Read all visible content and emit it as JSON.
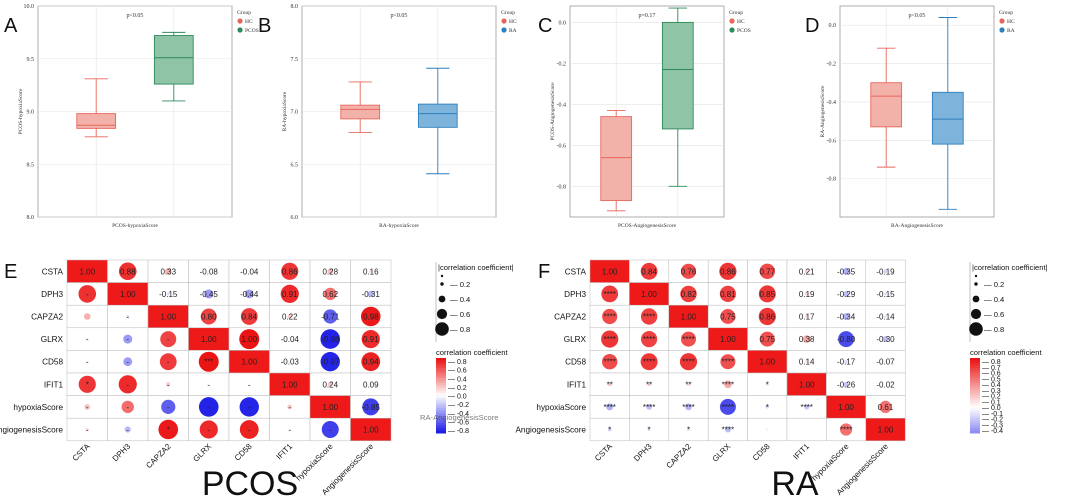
{
  "boxplots": [
    {
      "panel": "A",
      "ylabel": "PCOS-hypoxiaScore",
      "xlabel": "PCOS-hypoxiaScore",
      "pvalue": "p<0.05",
      "ylim": [
        8.0,
        10.0
      ],
      "ticks": [
        "8.0",
        "8.5",
        "9.0",
        "9.5",
        "10.0"
      ],
      "tickvals": [
        8.0,
        8.5,
        9.0,
        9.5,
        10.0
      ],
      "legend": {
        "title": "Group",
        "items": [
          {
            "label": "HC",
            "color": "#e8675c"
          },
          {
            "label": "PCOS",
            "color": "#2c8a5a"
          }
        ]
      },
      "boxes": [
        {
          "group": "HC",
          "min": 8.76,
          "q1": 8.84,
          "median": 8.87,
          "q3": 8.98,
          "max": 9.31,
          "fill": "#f2b1a9",
          "stroke": "#e8675c"
        },
        {
          "group": "PCOS",
          "min": 9.1,
          "q1": 9.26,
          "median": 9.51,
          "q3": 9.72,
          "max": 9.75,
          "fill": "#8fc4a6",
          "stroke": "#2c8a5a"
        }
      ]
    },
    {
      "panel": "B",
      "ylabel": "RA-hypoxiaScore",
      "xlabel": "RA-hypoxiaScore",
      "pvalue": "p<0.05",
      "ylim": [
        6.0,
        8.0
      ],
      "ticks": [
        "6.0",
        "6.5",
        "7.0",
        "7.5",
        "8.0"
      ],
      "tickvals": [
        6.0,
        6.5,
        7.0,
        7.5,
        8.0
      ],
      "legend": {
        "title": "Group",
        "items": [
          {
            "label": "HC",
            "color": "#e8675c"
          },
          {
            "label": "RA",
            "color": "#2d7fbd"
          }
        ]
      },
      "boxes": [
        {
          "group": "HC",
          "min": 6.8,
          "q1": 6.93,
          "median": 7.02,
          "q3": 7.06,
          "max": 7.28,
          "fill": "#f2b1a9",
          "stroke": "#e8675c"
        },
        {
          "group": "RA",
          "min": 6.41,
          "q1": 6.85,
          "median": 6.98,
          "q3": 7.07,
          "max": 7.41,
          "fill": "#7eb4dc",
          "stroke": "#2d7fbd"
        }
      ]
    },
    {
      "panel": "C",
      "ylabel": "PCOS-AngiogenesisScore",
      "xlabel": "PCOS-AngiogenesisScore",
      "pvalue": "p=0.17",
      "ylim": [
        -0.95,
        0.08
      ],
      "ticks": [
        "-0.8",
        "-0.6",
        "-0.4",
        "-0.2",
        "0.0"
      ],
      "tickvals": [
        -0.8,
        -0.6,
        -0.4,
        -0.2,
        0.0
      ],
      "legend": {
        "title": "Group",
        "items": [
          {
            "label": "HC",
            "color": "#e8675c"
          },
          {
            "label": "PCOS",
            "color": "#2c8a5a"
          }
        ]
      },
      "boxes": [
        {
          "group": "HC",
          "min": -0.92,
          "q1": -0.87,
          "median": -0.66,
          "q3": -0.46,
          "max": -0.43,
          "fill": "#f2b1a9",
          "stroke": "#e8675c"
        },
        {
          "group": "PCOS",
          "min": -0.8,
          "q1": -0.52,
          "median": -0.23,
          "q3": 0.0,
          "max": 0.07,
          "fill": "#8fc4a6",
          "stroke": "#2c8a5a"
        }
      ]
    },
    {
      "panel": "D",
      "ylabel": "RA-AngiogenesisScore",
      "xlabel": "RA-AngiogenesisScore",
      "pvalue": "p<0.05",
      "ylim": [
        -1.0,
        0.1
      ],
      "ticks": [
        "-0.8",
        "-0.6",
        "-0.4",
        "-0.2",
        "0.0"
      ],
      "tickvals": [
        -0.8,
        -0.6,
        -0.4,
        -0.2,
        0.0
      ],
      "legend": {
        "title": "Group",
        "items": [
          {
            "label": "HC",
            "color": "#e8675c"
          },
          {
            "label": "RA",
            "color": "#2d7fbd"
          }
        ]
      },
      "boxes": [
        {
          "group": "HC",
          "min": -0.74,
          "q1": -0.53,
          "median": -0.37,
          "q3": -0.3,
          "max": -0.12,
          "fill": "#f2b1a9",
          "stroke": "#e8675c"
        },
        {
          "group": "RA",
          "min": -0.96,
          "q1": -0.62,
          "median": -0.49,
          "q3": -0.35,
          "max": 0.04,
          "fill": "#7eb4dc",
          "stroke": "#2d7fbd"
        }
      ]
    }
  ],
  "correlations": [
    {
      "panel": "E",
      "title": "PCOS",
      "labels": [
        "CSTA",
        "DPH3",
        "CAPZA2",
        "GLRX",
        "CD58",
        "IFIT1",
        "hypoxiaScore",
        "AngiogenesisScore"
      ],
      "matrix": [
        [
          1.0,
          0.88,
          0.33,
          -0.08,
          -0.04,
          0.86,
          0.28,
          0.16
        ],
        [
          0.88,
          1.0,
          -0.15,
          -0.45,
          -0.44,
          0.91,
          0.62,
          -0.31
        ],
        [
          0.33,
          -0.15,
          1.0,
          0.8,
          0.84,
          0.22,
          -0.71,
          0.98
        ],
        [
          -0.08,
          -0.45,
          0.8,
          1.0,
          1.0,
          -0.04,
          -0.98,
          0.91
        ],
        [
          -0.04,
          -0.44,
          0.84,
          1.0,
          1.0,
          -0.03,
          -0.97,
          0.94
        ],
        [
          0.86,
          0.91,
          0.22,
          -0.04,
          -0.03,
          1.0,
          0.24,
          0.09
        ],
        [
          0.28,
          0.62,
          -0.71,
          -0.98,
          -0.97,
          0.24,
          1.0,
          -0.85
        ],
        [
          0.16,
          -0.31,
          0.98,
          0.91,
          0.94,
          0.09,
          -0.85,
          1.0
        ]
      ],
      "lower_text": [
        [
          "",
          "",
          "",
          "",
          "",
          "",
          "",
          ""
        ],
        [
          "-",
          "",
          "",
          "",
          "",
          "",
          "",
          ""
        ],
        [
          "",
          "-",
          "",
          "",
          "",
          "",
          "",
          ""
        ],
        [
          "-",
          "-",
          "-",
          "",
          "",
          "",
          "",
          ""
        ],
        [
          "-",
          "-",
          "-",
          "***",
          "",
          "",
          "",
          ""
        ],
        [
          "*",
          "-",
          "-",
          "-",
          "-",
          "",
          "",
          ""
        ],
        [
          "-",
          "-",
          "-",
          "-",
          "-",
          "-",
          "",
          ""
        ],
        [
          "-",
          "-",
          "*",
          "-",
          "-",
          "-",
          "-",
          ""
        ]
      ],
      "upper_text": [
        [
          "",
          "0.88",
          "0.33",
          "-0.08",
          "-0.04",
          "0.86",
          "0.28",
          "0.16"
        ],
        [
          "",
          "",
          "-0.15",
          "-0.45",
          "-0.44",
          "0.91",
          "0.62",
          "-0.31"
        ],
        [
          "",
          "",
          "",
          "0.80",
          "0.84",
          "0.22",
          "-0.71",
          "0.98"
        ],
        [
          "",
          "",
          "",
          "",
          "1.00",
          "-0.04",
          "-0.98",
          "0.91"
        ],
        [
          "",
          "",
          "",
          "",
          "",
          "-0.03",
          "-0.97",
          "0.94"
        ],
        [
          "",
          "",
          "",
          "",
          "",
          "",
          "0.24",
          "0.09"
        ],
        [
          "",
          "",
          "",
          "",
          "",
          "",
          "",
          "-0.85"
        ],
        [
          "",
          "",
          "",
          "",
          "",
          "",
          "",
          ""
        ]
      ],
      "size_legend": {
        "title": "|correlation coefficient|",
        "values": [
          "0.2",
          "0.4",
          "0.6",
          "0.8"
        ]
      },
      "color_legend": {
        "title": "correlation coefficient",
        "values": [
          "0.8",
          "0.6",
          "0.4",
          "0.2",
          "0.0",
          "-0.2",
          "-0.4",
          "-0.6",
          "-0.8"
        ],
        "range": [
          -0.8,
          0.8
        ]
      },
      "overlap_label": "RA-AngiogenesisScore"
    },
    {
      "panel": "F",
      "title": "RA",
      "labels": [
        "CSTA",
        "DPH3",
        "CAPZA2",
        "GLRX",
        "CD58",
        "IFIT1",
        "hypoxiaScore",
        "AngiogenesisScore"
      ],
      "matrix": [
        [
          1.0,
          0.84,
          0.76,
          0.86,
          0.77,
          0.21,
          -0.35,
          -0.19
        ],
        [
          0.84,
          1.0,
          0.82,
          0.81,
          0.85,
          0.19,
          -0.29,
          -0.15
        ],
        [
          0.76,
          0.82,
          1.0,
          0.75,
          0.86,
          0.17,
          -0.34,
          -0.14
        ],
        [
          0.86,
          0.81,
          0.75,
          1.0,
          0.75,
          0.38,
          -0.8,
          -0.3
        ],
        [
          0.77,
          0.85,
          0.86,
          0.75,
          1.0,
          0.14,
          -0.17,
          -0.07
        ],
        [
          0.21,
          0.19,
          0.17,
          0.38,
          0.14,
          1.0,
          -0.26,
          -0.02
        ],
        [
          -0.35,
          -0.29,
          -0.34,
          -0.8,
          -0.17,
          -0.26,
          1.0,
          0.61
        ],
        [
          -0.19,
          -0.15,
          -0.14,
          -0.3,
          -0.07,
          -0.02,
          0.61,
          1.0
        ]
      ],
      "lower_text": [
        [
          "",
          "",
          "",
          "",
          "",
          "",
          "",
          ""
        ],
        [
          "****",
          "",
          "",
          "",
          "",
          "",
          "",
          ""
        ],
        [
          "****",
          "****",
          "",
          "",
          "",
          "",
          "",
          ""
        ],
        [
          "****",
          "****",
          "****",
          "",
          "",
          "",
          "",
          ""
        ],
        [
          "****",
          "****",
          "****",
          "****",
          "",
          "",
          "",
          ""
        ],
        [
          "**",
          "**",
          "**",
          "****",
          "*",
          "",
          "",
          ""
        ],
        [
          "****",
          "****",
          "****",
          "****",
          "*",
          "****",
          "",
          ""
        ],
        [
          "*",
          "*",
          "*",
          "****",
          "",
          "",
          "****",
          ""
        ]
      ],
      "upper_text": [
        [
          "",
          "0.84",
          "0.76",
          "0.86",
          "0.77",
          "0.21",
          "-0.35",
          "-0.19"
        ],
        [
          "",
          "",
          "0.82",
          "0.81",
          "0.85",
          "0.19",
          "-0.29",
          "-0.15"
        ],
        [
          "",
          "",
          "",
          "0.75",
          "0.86",
          "0.17",
          "-0.34",
          "-0.14"
        ],
        [
          "",
          "",
          "",
          "",
          "0.75",
          "0.38",
          "-0.80",
          "-0.30"
        ],
        [
          "",
          "",
          "",
          "",
          "",
          "0.14",
          "-0.17",
          "-0.07"
        ],
        [
          "",
          "",
          "",
          "",
          "",
          "",
          "-0.26",
          "-0.02"
        ],
        [
          "",
          "",
          "",
          "",
          "",
          "",
          "",
          "0.61"
        ],
        [
          "",
          "",
          "",
          "",
          "",
          "",
          "",
          ""
        ]
      ],
      "size_legend": {
        "title": "|correlation coefficient|",
        "values": [
          "0.2",
          "0.4",
          "0.6",
          "0.8"
        ]
      },
      "color_legend": {
        "title": "correlation coefficient",
        "values": [
          "0.8",
          "0.7",
          "0.6",
          "0.5",
          "0.4",
          "0.3",
          "0.2",
          "0.1",
          "0.0",
          "-0.1",
          "-0.2",
          "-0.3",
          "-0.4"
        ],
        "range": [
          -0.4,
          0.8
        ]
      }
    }
  ],
  "chart_data": [
    {
      "type": "box",
      "title": "A",
      "subtitle": "p<0.05",
      "ylabel": "PCOS-hypoxiaScore",
      "categories": [
        "HC",
        "PCOS"
      ],
      "ylim": [
        8.0,
        10.0
      ]
    },
    {
      "type": "box",
      "title": "B",
      "subtitle": "p<0.05",
      "ylabel": "RA-hypoxiaScore",
      "categories": [
        "HC",
        "RA"
      ],
      "ylim": [
        6.0,
        8.0
      ]
    },
    {
      "type": "box",
      "title": "C",
      "subtitle": "p=0.17",
      "ylabel": "PCOS-AngiogenesisScore",
      "categories": [
        "HC",
        "PCOS"
      ],
      "ylim": [
        -0.95,
        0.08
      ]
    },
    {
      "type": "box",
      "title": "D",
      "subtitle": "p<0.05",
      "ylabel": "RA-AngiogenesisScore",
      "categories": [
        "HC",
        "RA"
      ],
      "ylim": [
        -1.0,
        0.1
      ]
    },
    {
      "type": "heatmap",
      "title": "PCOS",
      "description": "Correlation matrix E"
    },
    {
      "type": "heatmap",
      "title": "RA",
      "description": "Correlation matrix F"
    }
  ]
}
